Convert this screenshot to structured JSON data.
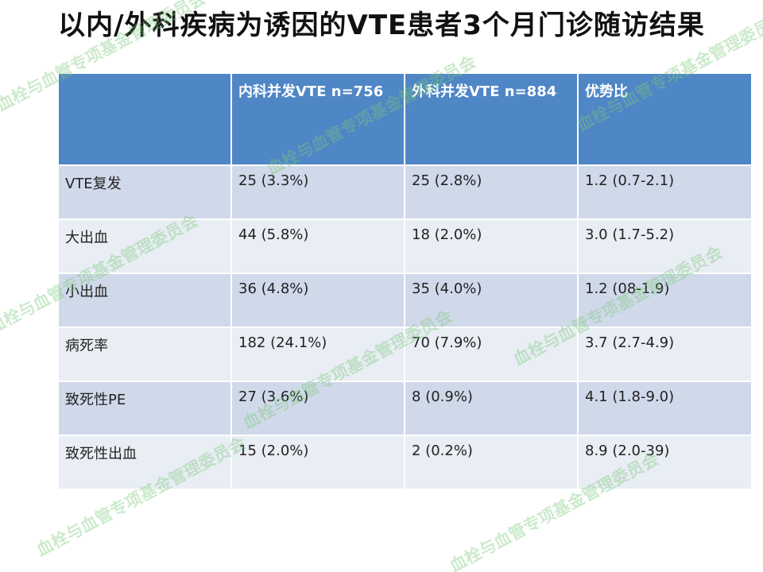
{
  "title": "以内/外科疾病为诱因的VTE患者3个月门诊随访结果",
  "table": {
    "headers": [
      "",
      "内科并发VTE n=756",
      "外科并发VTE n=884",
      "优势比"
    ],
    "rows": [
      [
        "VTE复发",
        "25 (3.3%)",
        "25 (2.8%)",
        "1.2 (0.7-2.1)"
      ],
      [
        "大出血",
        "44 (5.8%)",
        "18 (2.0%)",
        "3.0 (1.7-5.2)"
      ],
      [
        "小出血",
        "36 (4.8%)",
        "35 (4.0%)",
        "1.2 (08-1.9)"
      ],
      [
        "病死率",
        "182 (24.1%)",
        "70 (7.9%)",
        "3.7 (2.7-4.9)"
      ],
      [
        "致死性PE",
        "27 (3.6%)",
        "8 (0.9%)",
        "4.1 (1.8-9.0)"
      ],
      [
        "致死性出血",
        "15 (2.0%)",
        "2 (0.2%)",
        "8.9 (2.0-39)"
      ]
    ]
  },
  "watermark": "血栓与血管专项基金管理委员会",
  "colors": {
    "header_bg": "#4f86c6",
    "row_dark": "#d0d9ea",
    "row_light": "#e9edf4",
    "watermark": "#78c878"
  }
}
